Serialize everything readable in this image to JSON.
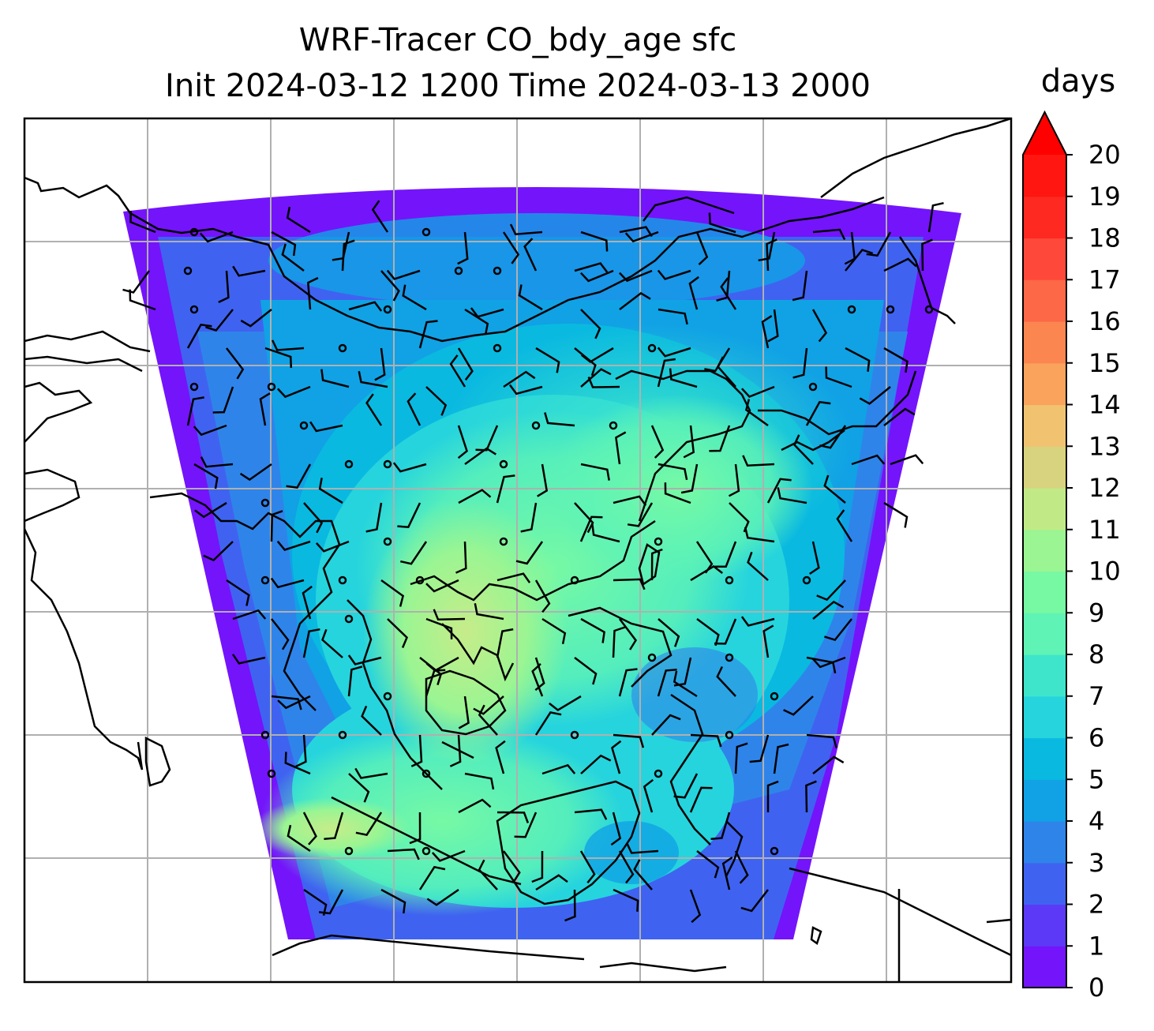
{
  "title": {
    "line1": "WRF-Tracer CO_bdy_age sfc",
    "line2": "Init 2024-03-12 1200 Time 2024-03-13 2000"
  },
  "colorbar": {
    "units": "days",
    "min": 0,
    "max": 20,
    "extend": "max",
    "ticks": [
      "0",
      "1",
      "2",
      "3",
      "4",
      "5",
      "6",
      "7",
      "8",
      "9",
      "10",
      "11",
      "12",
      "13",
      "14",
      "15",
      "16",
      "17",
      "18",
      "19",
      "20"
    ],
    "colors": [
      "#7414fb",
      "#5b39f6",
      "#3f63f0",
      "#2f84ea",
      "#10a2e5",
      "#0ab9e0",
      "#26d4dd",
      "#3ee5cb",
      "#5ff4b5",
      "#77f9a4",
      "#9af592",
      "#c1ea86",
      "#d8d37e",
      "#f1c270",
      "#f9a35c",
      "#fb8650",
      "#fd6846",
      "#fe493a",
      "#fe2a22",
      "#ff1610"
    ],
    "extend_color": "#ff0000"
  },
  "map": {
    "gridlines": "on",
    "icons": [
      "wind-barb-icon",
      "calm-wind-circle-icon"
    ]
  }
}
